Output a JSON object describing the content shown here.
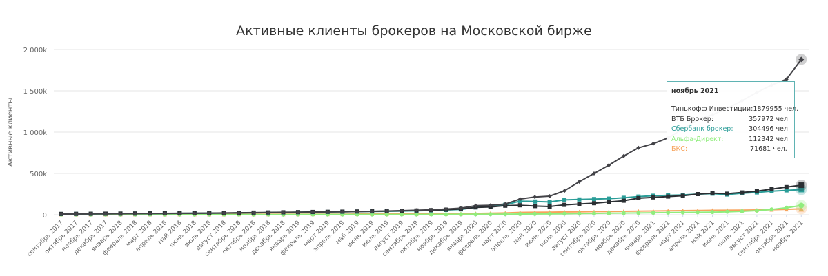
{
  "chart_data": {
    "type": "line",
    "title": "Активные клиенты брокеров на Московской бирже",
    "ylabel": "Активные клиенты",
    "ylim": [
      0,
      2000000
    ],
    "yticks": [
      {
        "value": 0,
        "label": "0"
      },
      {
        "value": 500000,
        "label": "500k"
      },
      {
        "value": 1000000,
        "label": "1 000k"
      },
      {
        "value": 1500000,
        "label": "1 500k"
      },
      {
        "value": 2000000,
        "label": "2 000k"
      }
    ],
    "grid": true,
    "categories": [
      "сентябрь 2017",
      "октябрь 2017",
      "ноябрь 2017",
      "декабрь 2017",
      "январь 2018",
      "февраль 2018",
      "март 2018",
      "апрель 2018",
      "май 2018",
      "июнь 2018",
      "июль 2018",
      "август 2018",
      "сентябрь 2018",
      "октябрь 2018",
      "ноябрь 2018",
      "декабрь 2018",
      "январь 2019",
      "февраль 2019",
      "март 2019",
      "апрель 2019",
      "май 2019",
      "июнь 2019",
      "июль 2019",
      "август 2019",
      "сентябрь 2019",
      "октябрь 2019",
      "ноябрь 2019",
      "декабрь 2019",
      "январь 2020",
      "февраль 2020",
      "март 2020",
      "апрель 2020",
      "май 2020",
      "июнь 2020",
      "июль 2020",
      "август 2020",
      "сентябрь 2020",
      "октябрь 2020",
      "ноябрь 2020",
      "декабрь 2020",
      "январь 2021",
      "февраль 2021",
      "март 2021",
      "апрель 2021",
      "май 2021",
      "июнь 2021",
      "июль 2021",
      "август 2021",
      "сентябрь 2021",
      "октябрь 2021",
      "ноябрь 2021"
    ],
    "series": [
      {
        "name": "Тинькофф Инвестиции",
        "color": "#434348",
        "marker": "diamond",
        "values": [
          8000,
          9000,
          10000,
          11000,
          12000,
          13000,
          14000,
          15000,
          16000,
          17000,
          18000,
          20000,
          22000,
          24000,
          26000,
          28000,
          30000,
          32000,
          34000,
          36000,
          38000,
          42000,
          46000,
          50000,
          55000,
          60000,
          70000,
          80000,
          110000,
          115000,
          130000,
          190000,
          215000,
          225000,
          290000,
          400000,
          500000,
          600000,
          710000,
          810000,
          860000,
          930000,
          1040000,
          1150000,
          1210000,
          1290000,
          1380000,
          1480000,
          1570000,
          1640000,
          1879955
        ]
      },
      {
        "name": "ВТБ Брокер",
        "color": "#2b2f33",
        "marker": "square",
        "values": [
          10000,
          11000,
          12000,
          13000,
          14000,
          15000,
          16000,
          17000,
          18000,
          19000,
          20000,
          22000,
          24000,
          26000,
          28000,
          30000,
          32000,
          34000,
          36000,
          38000,
          40000,
          42000,
          45000,
          48000,
          52000,
          56000,
          62000,
          70000,
          90000,
          95000,
          110000,
          115000,
          105000,
          100000,
          120000,
          130000,
          140000,
          155000,
          170000,
          200000,
          210000,
          220000,
          230000,
          250000,
          260000,
          255000,
          270000,
          285000,
          310000,
          335000,
          357972
        ]
      },
      {
        "name": "Сбербанк брокер",
        "color": "#2a9d98",
        "marker": "square",
        "values": [
          9000,
          10000,
          11000,
          12000,
          13000,
          14000,
          15000,
          16000,
          17000,
          18000,
          19000,
          20000,
          22000,
          24000,
          26000,
          28000,
          30000,
          32000,
          34000,
          36000,
          38000,
          40000,
          42000,
          45000,
          48000,
          52000,
          58000,
          65000,
          90000,
          100000,
          120000,
          165000,
          160000,
          155000,
          180000,
          185000,
          190000,
          195000,
          205000,
          220000,
          230000,
          235000,
          240000,
          250000,
          255000,
          245000,
          260000,
          270000,
          285000,
          295000,
          304496
        ]
      },
      {
        "name": "Альфа-Директ",
        "color": "#90ed7d",
        "marker": "circle",
        "values": [
          2000,
          2000,
          2000,
          2000,
          2000,
          2000,
          2000,
          2000,
          2000,
          2000,
          2000,
          2000,
          2000,
          2000,
          2000,
          2000,
          3000,
          3000,
          3000,
          3000,
          3000,
          3000,
          3000,
          3000,
          3000,
          4000,
          4000,
          5000,
          5000,
          6000,
          7000,
          8000,
          9000,
          10000,
          12000,
          14000,
          16000,
          18000,
          20000,
          22000,
          24000,
          26000,
          28000,
          30000,
          32000,
          36000,
          42000,
          50000,
          65000,
          85000,
          112342
        ]
      },
      {
        "name": "БКС",
        "color": "#f7a35c",
        "marker": "triangle",
        "values": [
          5000,
          5000,
          5000,
          5000,
          5000,
          5000,
          5000,
          5000,
          5000,
          5000,
          5000,
          5000,
          6000,
          6000,
          6000,
          6000,
          7000,
          7000,
          7000,
          7000,
          8000,
          8000,
          8000,
          9000,
          9000,
          10000,
          11000,
          12000,
          16000,
          18000,
          22000,
          28000,
          30000,
          32000,
          34000,
          36000,
          38000,
          40000,
          42000,
          44000,
          46000,
          48000,
          50000,
          52000,
          54000,
          55000,
          56000,
          58000,
          62000,
          66000,
          71681
        ]
      }
    ]
  },
  "tooltip": {
    "title": "ноябрь 2021",
    "rows": [
      {
        "name": "Тинькофф Инвестиции:",
        "value": "1879955 чел.",
        "color": "#333333"
      },
      {
        "name": "ВТБ Брокер:",
        "value": "357972 чел.",
        "color": "#333333"
      },
      {
        "name": "Сбербанк брокер:",
        "value": "304496 чел.",
        "color": "#2a9d98"
      },
      {
        "name": "Альфа-Директ:",
        "value": "112342 чел.",
        "color": "#90ed7d"
      },
      {
        "name": "БКС:",
        "value": "71681 чел.",
        "color": "#f7a35c"
      }
    ]
  }
}
